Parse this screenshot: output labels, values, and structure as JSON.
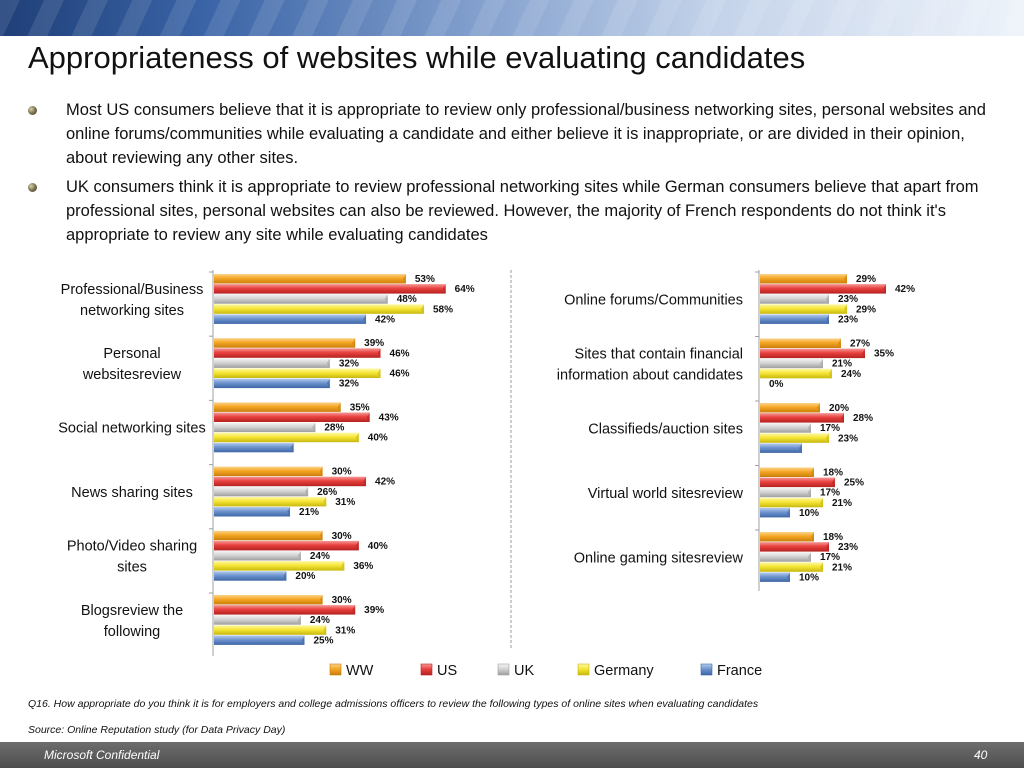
{
  "slide": {
    "title": "Appropriateness of websites while evaluating candidates",
    "bullets": [
      "Most US consumers believe that it is appropriate to review only professional/business networking sites, personal websites and online forums/communities while evaluating a candidate and either believe it is inappropriate, or are divided in their opinion, about reviewing any other sites.",
      "UK consumers think it is appropriate to review professional networking sites while German consumers believe that apart from professional sites, personal websites can also be reviewed. However, the majority of French respondents do not think it's appropriate to review any site  while evaluating candidates"
    ],
    "question_note": "Q16. How appropriate do you think it is for employers and college admissions officers to review the following types of online sites when evaluating candidates",
    "source_note": "Source: Online Reputation study (for Data Privacy Day)",
    "footer_left": "Microsoft Confidential",
    "page_number": "40"
  },
  "chart_data": [
    {
      "type": "bar",
      "orientation": "horizontal",
      "categories": [
        "Professional/Business networking sites",
        "Personal websitesreview",
        "Social networking sites",
        "News sharing sites",
        "Photo/Video sharing sites",
        "Blogsreview the following"
      ],
      "series": [
        {
          "name": "WW",
          "values": [
            53,
            39,
            35,
            30,
            30,
            30
          ]
        },
        {
          "name": "US",
          "values": [
            64,
            46,
            43,
            42,
            40,
            39
          ]
        },
        {
          "name": "UK",
          "values": [
            48,
            32,
            28,
            26,
            24,
            24
          ]
        },
        {
          "name": "Germany",
          "values": [
            58,
            46,
            40,
            31,
            36,
            31
          ]
        },
        {
          "name": "France",
          "values": [
            42,
            32,
            22,
            21,
            20,
            25
          ]
        }
      ],
      "hidden_labels": [
        [
          2,
          4
        ]
      ],
      "xlim": [
        0,
        100
      ]
    },
    {
      "type": "bar",
      "orientation": "horizontal",
      "categories": [
        "Online forums/Communities",
        "Sites that contain financial information about candidates",
        "Classifieds/auction sites",
        "Virtual world sitesreview",
        "Online gaming sitesreview"
      ],
      "series": [
        {
          "name": "WW",
          "values": [
            29,
            27,
            20,
            18,
            18
          ]
        },
        {
          "name": "US",
          "values": [
            42,
            35,
            28,
            25,
            23
          ]
        },
        {
          "name": "UK",
          "values": [
            23,
            21,
            17,
            17,
            17
          ]
        },
        {
          "name": "Germany",
          "values": [
            29,
            24,
            23,
            21,
            21
          ]
        },
        {
          "name": "France",
          "values": [
            23,
            0,
            14,
            10,
            10
          ]
        }
      ],
      "hidden_labels": [
        [
          2,
          4
        ]
      ],
      "xlim": [
        0,
        100
      ]
    }
  ],
  "legend": {
    "position": "bottom",
    "items": [
      {
        "name": "WW",
        "color": "#f5a623"
      },
      {
        "name": "US",
        "color": "#e8413f"
      },
      {
        "name": "UK",
        "color": "#cfcfcf"
      },
      {
        "name": "Germany",
        "color": "#f6e635"
      },
      {
        "name": "France",
        "color": "#6f95cf"
      }
    ]
  },
  "colors": {
    "WW": [
      "#fbd38a",
      "#f5a623",
      "#c97e0c"
    ],
    "US": [
      "#f59a97",
      "#e8413f",
      "#b42220"
    ],
    "UK": [
      "#f4f4f4",
      "#d4d4d4",
      "#9e9e9e"
    ],
    "Germany": [
      "#fff8a8",
      "#f6e635",
      "#c8b80e"
    ],
    "France": [
      "#b7cdee",
      "#6f95cf",
      "#3e66a6"
    ]
  }
}
